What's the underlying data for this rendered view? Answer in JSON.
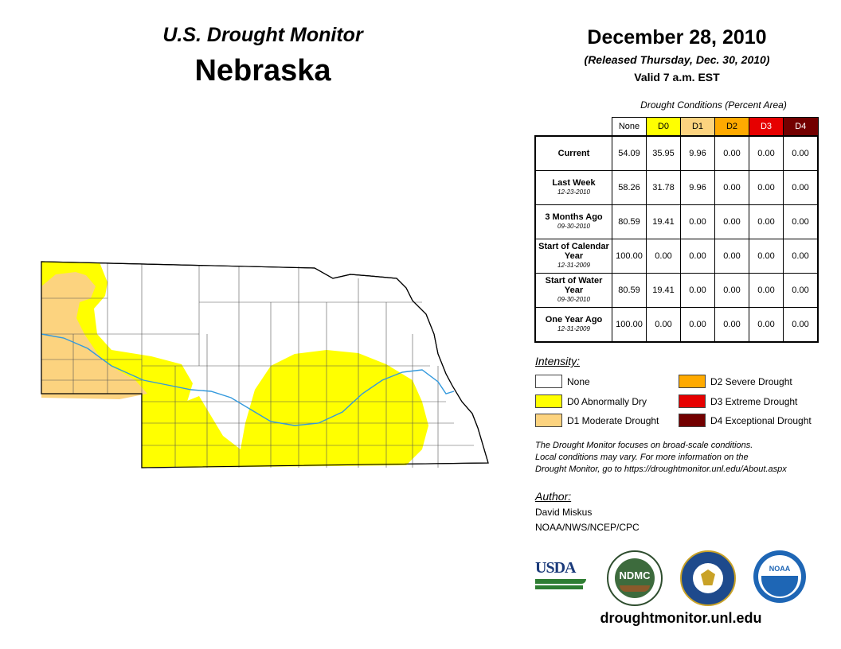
{
  "header": {
    "title": "U.S. Drought Monitor",
    "state": "Nebraska"
  },
  "date": {
    "title": "December 28, 2010",
    "released": "(Released Thursday, Dec. 30, 2010)",
    "valid": "Valid 7 a.m. EST"
  },
  "table": {
    "caption": "Drought Conditions (Percent Area)",
    "columns": [
      "None",
      "D0",
      "D1",
      "D2",
      "D3",
      "D4"
    ],
    "rows": [
      {
        "label": "Current",
        "date": "",
        "values": [
          "54.09",
          "35.95",
          "9.96",
          "0.00",
          "0.00",
          "0.00"
        ]
      },
      {
        "label": "Last Week",
        "date": "12-23-2010",
        "values": [
          "58.26",
          "31.78",
          "9.96",
          "0.00",
          "0.00",
          "0.00"
        ]
      },
      {
        "label": "3 Months Ago",
        "date": "09-30-2010",
        "values": [
          "80.59",
          "19.41",
          "0.00",
          "0.00",
          "0.00",
          "0.00"
        ]
      },
      {
        "label": "Start of Calendar Year",
        "date": "12-31-2009",
        "values": [
          "100.00",
          "0.00",
          "0.00",
          "0.00",
          "0.00",
          "0.00"
        ]
      },
      {
        "label": "Start of Water Year",
        "date": "09-30-2010",
        "values": [
          "80.59",
          "19.41",
          "0.00",
          "0.00",
          "0.00",
          "0.00"
        ]
      },
      {
        "label": "One Year Ago",
        "date": "12-31-2009",
        "values": [
          "100.00",
          "0.00",
          "0.00",
          "0.00",
          "0.00",
          "0.00"
        ]
      }
    ]
  },
  "legend": {
    "title": "Intensity:",
    "items": [
      {
        "label": "None",
        "color": "#ffffff"
      },
      {
        "label": "D0 Abnormally Dry",
        "color": "#ffff00"
      },
      {
        "label": "D1 Moderate Drought",
        "color": "#fcd37f"
      },
      {
        "label": "D2 Severe Drought",
        "color": "#ffaa00"
      },
      {
        "label": "D3 Extreme Drought",
        "color": "#e60000"
      },
      {
        "label": "D4 Exceptional Drought",
        "color": "#730000"
      }
    ]
  },
  "note": {
    "line1": "The Drought Monitor focuses on broad-scale conditions.",
    "line2": "Local conditions may vary. For more information on the",
    "line3": "Drought Monitor, go to https://droughtmonitor.unl.edu/About.aspx"
  },
  "author": {
    "title": "Author:",
    "name": "David Miskus",
    "org": "NOAA/NWS/NCEP/CPC"
  },
  "logos": {
    "usda": "USDA",
    "ndmc": "NDMC",
    "noaa": "NOAA"
  },
  "website": "droughtmonitor.unl.edu",
  "map": {
    "river_color": "#3399dd"
  }
}
